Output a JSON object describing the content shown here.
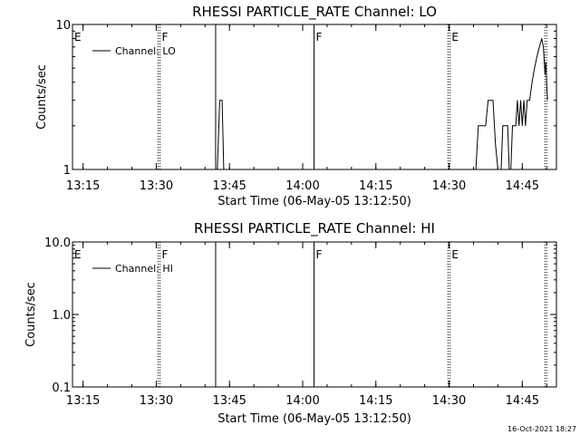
{
  "footer_timestamp": "16-Oct-2021 18:27",
  "chart_data": [
    {
      "type": "line",
      "title": "RHESSI PARTICLE_RATE Channel: LO",
      "xlabel": "Start Time (06-May-05 13:12:50)",
      "ylabel": "Counts/sec",
      "y_scale": "log",
      "ylim": [
        1,
        10
      ],
      "xlim": [
        "13:12:50",
        "14:52:00"
      ],
      "x_ticks": [
        "13:15",
        "13:30",
        "13:45",
        "14:00",
        "14:15",
        "14:30",
        "14:45"
      ],
      "y_ticks": [
        "1",
        "10"
      ],
      "legend": {
        "label": "Channel: LO",
        "placement": "top-left"
      },
      "markers": [
        {
          "time": "13:30:45",
          "flag": "F",
          "style": "dotted"
        },
        {
          "time": "13:42:10",
          "flag": "",
          "style": "solid"
        },
        {
          "time": "14:02:20",
          "flag": "F",
          "style": "solid"
        },
        {
          "time": "14:30:10",
          "flag": "E",
          "style": "dotted"
        },
        {
          "time": "14:50:00",
          "flag": "",
          "style": "dotted"
        }
      ],
      "left_flag": "E",
      "series": [
        {
          "segments": [
            [
              [
                "13:42:30",
                1.0
              ],
              [
                "13:42:50",
                2.0
              ],
              [
                "13:43:00",
                3.0
              ],
              [
                "13:43:30",
                3.0
              ],
              [
                "13:43:50",
                1.0
              ]
            ],
            [
              [
                "14:35:30",
                1.0
              ],
              [
                "14:36:00",
                2.0
              ],
              [
                "14:37:30",
                2.0
              ],
              [
                "14:38:00",
                3.0
              ],
              [
                "14:39:00",
                3.0
              ],
              [
                "14:39:30",
                1.5
              ],
              [
                "14:40:00",
                1.0
              ]
            ],
            [
              [
                "14:40:40",
                1.0
              ],
              [
                "14:41:00",
                2.0
              ],
              [
                "14:42:00",
                2.0
              ],
              [
                "14:42:20",
                1.0
              ]
            ],
            [
              [
                "14:42:40",
                1.0
              ],
              [
                "14:43:00",
                2.0
              ],
              [
                "14:43:40",
                2.0
              ],
              [
                "14:44:00",
                3.0
              ],
              [
                "14:44:20",
                2.0
              ],
              [
                "14:44:40",
                3.0
              ],
              [
                "14:45:00",
                2.0
              ],
              [
                "14:45:20",
                3.0
              ],
              [
                "14:45:40",
                2.0
              ],
              [
                "14:46:00",
                3.0
              ],
              [
                "14:46:30",
                3.0
              ],
              [
                "14:47:00",
                4.0
              ],
              [
                "14:47:30",
                5.0
              ],
              [
                "14:48:00",
                6.0
              ],
              [
                "14:48:30",
                7.0
              ],
              [
                "14:49:00",
                8.0
              ],
              [
                "14:49:20",
                7.0
              ],
              [
                "14:49:40",
                4.5
              ],
              [
                "14:49:50",
                5.5
              ],
              [
                "14:50:00",
                4.0
              ],
              [
                "14:50:10",
                3.0
              ]
            ]
          ]
        }
      ]
    },
    {
      "type": "line",
      "title": "RHESSI PARTICLE_RATE Channel: HI",
      "xlabel": "Start Time (06-May-05 13:12:50)",
      "ylabel": "Counts/sec",
      "y_scale": "log",
      "ylim": [
        0.1,
        10
      ],
      "xlim": [
        "13:12:50",
        "14:52:00"
      ],
      "x_ticks": [
        "13:15",
        "13:30",
        "13:45",
        "14:00",
        "14:15",
        "14:30",
        "14:45"
      ],
      "y_ticks": [
        "0.1",
        "1.0",
        "10.0"
      ],
      "legend": {
        "label": "Channel: HI",
        "placement": "top-left"
      },
      "markers": [
        {
          "time": "13:30:45",
          "flag": "F",
          "style": "dotted"
        },
        {
          "time": "13:42:10",
          "flag": "",
          "style": "solid"
        },
        {
          "time": "14:02:20",
          "flag": "F",
          "style": "solid"
        },
        {
          "time": "14:30:10",
          "flag": "E",
          "style": "dotted"
        },
        {
          "time": "14:50:00",
          "flag": "",
          "style": "dotted"
        }
      ],
      "left_flag": "E",
      "series": [
        {
          "segments": []
        }
      ]
    }
  ]
}
